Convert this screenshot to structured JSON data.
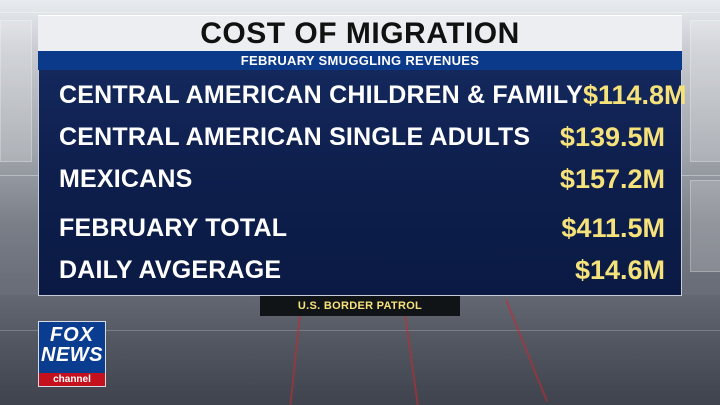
{
  "graphic": {
    "title": "COST OF MIGRATION",
    "subtitle": "FEBRUARY SMUGGLING REVENUES",
    "rows": [
      {
        "label": "CENTRAL AMERICAN CHILDREN & FAMILY",
        "value": "$114.8M"
      },
      {
        "label": "CENTRAL AMERICAN SINGLE ADULTS",
        "value": "$139.5M"
      },
      {
        "label": "MEXICANS",
        "value": "$157.2M"
      },
      {
        "label": "FEBRUARY TOTAL",
        "value": "$411.5M"
      },
      {
        "label": "DAILY AVGERAGE",
        "value": "$14.6M"
      }
    ],
    "source": "U.S. BORDER PATROL"
  },
  "logo": {
    "line1": "FOX",
    "line2": "NEWS",
    "line3": "channel"
  },
  "colors": {
    "title_bar": "#eceef1",
    "subtitle_bar": "#0b3a8a",
    "panel": "#0e1f4d",
    "value_text": "#f6e27a",
    "logo_red": "#c4111d"
  }
}
